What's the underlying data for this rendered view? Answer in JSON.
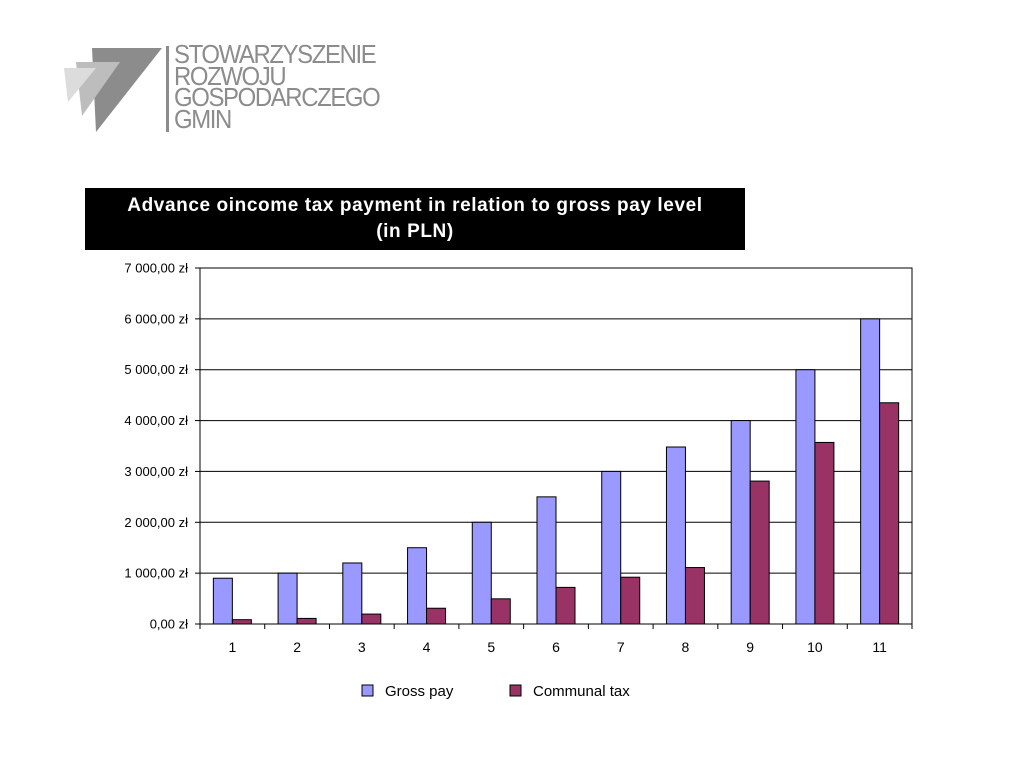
{
  "logo": {
    "lines": [
      "STOWARZYSZENIE",
      "ROZWOJU",
      "GOSPODARCZEGO",
      "GMIN"
    ]
  },
  "chart_data": {
    "type": "bar",
    "title_lines": [
      "Advance oincome tax payment in relation to gross pay level",
      "(in PLN)"
    ],
    "categories": [
      "1",
      "2",
      "3",
      "4",
      "5",
      "6",
      "7",
      "8",
      "9",
      "10",
      "11"
    ],
    "series": [
      {
        "name": "Gross pay",
        "color": "#9999ff",
        "values": [
          900,
          1000,
          1200,
          1500,
          2000,
          2500,
          3000,
          3480,
          4000,
          5000,
          6000
        ]
      },
      {
        "name": "Communal tax",
        "color": "#993366",
        "values": [
          85,
          110,
          195,
          310,
          495,
          720,
          920,
          1110,
          2810,
          3570,
          4350
        ]
      }
    ],
    "y_ticks": [
      0,
      1000,
      2000,
      3000,
      4000,
      5000,
      6000,
      7000
    ],
    "y_tick_labels": [
      "0,00 zł",
      "1 000,00 zł",
      "2 000,00 zł",
      "3 000,00 zł",
      "4 000,00 zł",
      "5 000,00 zł",
      "6 000,00 zł",
      "7 000,00 zł"
    ],
    "ylim": [
      0,
      7000
    ],
    "xlabel": "",
    "ylabel": "",
    "grid": true,
    "legend_position": "bottom"
  }
}
